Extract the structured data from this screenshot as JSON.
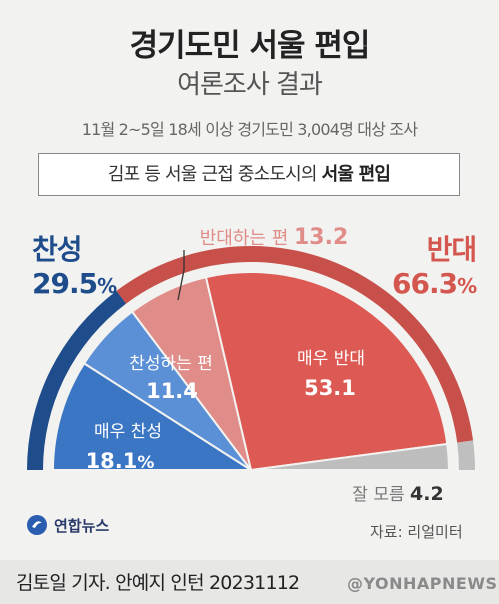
{
  "header": {
    "title": "경기도민 서울 편입",
    "subtitle": "여론조사 결과",
    "survey_info": "11월 2~5일 18세 이상 경기도민 3,004명 대상 조사",
    "question_prefix": "김포 등 서울 근접 중소도시의 ",
    "question_emphasis": "서울 편입"
  },
  "chart_data": {
    "type": "pie",
    "style": "half-donut",
    "groups": [
      {
        "label": "찬성",
        "value": 29.5,
        "unit": "%",
        "color": "#1f4d8c"
      },
      {
        "label": "반대",
        "value": 66.3,
        "unit": "%",
        "color": "#c7504a"
      }
    ],
    "slices": [
      {
        "label": "매우 찬성",
        "value": 18.1,
        "unit": "%",
        "color": "#3b76c4"
      },
      {
        "label": "찬성하는 편",
        "value": 11.4,
        "unit": "",
        "color": "#5b8fd6"
      },
      {
        "label": "반대하는 편",
        "value": 13.2,
        "unit": "",
        "color": "#e08c89"
      },
      {
        "label": "매우 반대",
        "value": 53.1,
        "unit": "",
        "color": "#dd5a54"
      },
      {
        "label": "잘 모름",
        "value": 4.2,
        "unit": "",
        "color": "#bdbdbd"
      }
    ],
    "colors": {
      "outer_oppose": "#c7504a",
      "outer_unknown": "#bfbfbf",
      "favor_text": "#1f4d8c",
      "oppose_text": "#d4574f",
      "somewhat_oppose_text": "#e08c89",
      "unknown_value_text": "#333333"
    }
  },
  "footer": {
    "logo_text": "연합뉴스",
    "source": "자료: 리얼미터",
    "byline": "김토일 기자. 안예지 인턴  20231112",
    "watermark": "@YONHAPNEWS"
  }
}
